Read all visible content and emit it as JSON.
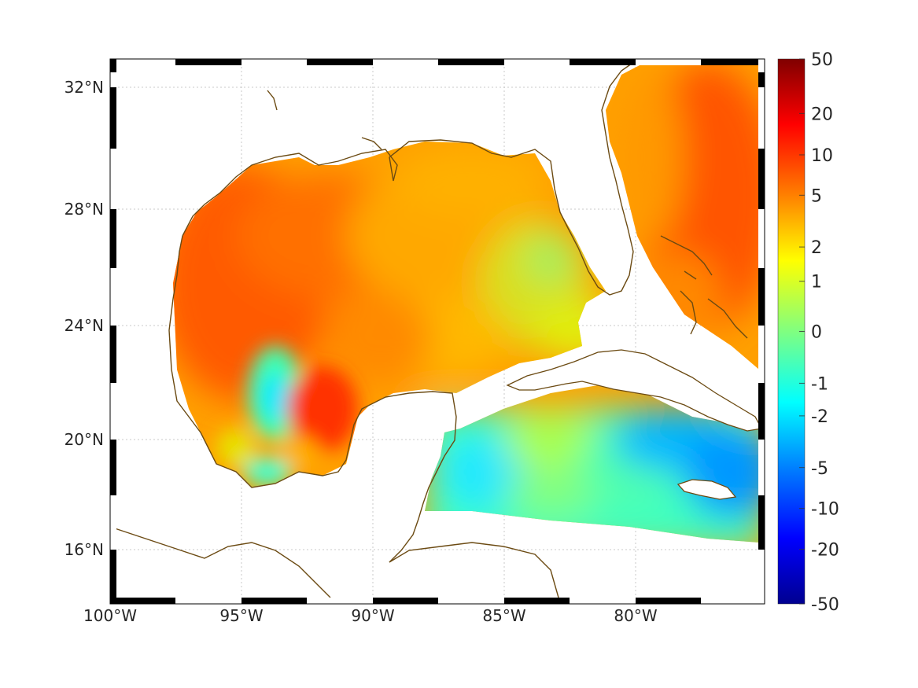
{
  "map": {
    "projection": "Mercator",
    "lon_range": [
      -100,
      -75
    ],
    "lat_range": [
      14.2,
      33
    ],
    "x_ticks": [
      "100°W",
      "95°W",
      "90°W",
      "85°W",
      "80°W"
    ],
    "y_ticks": [
      "32°N",
      "28°N",
      "24°N",
      "20°N",
      "16°N"
    ],
    "grid": true,
    "coastline_color": "#6b4a12",
    "frame_style": "alternating black-white border",
    "colormap": "jet",
    "scale": "symmetric log",
    "field_summary": [
      {
        "region": "Western Gulf of Mexico",
        "approx_value": 8
      },
      {
        "region": "Bay of Campeche core",
        "approx_value": 14
      },
      {
        "region": "Bay of Campeche west",
        "approx_value": -1
      },
      {
        "region": "Central Gulf",
        "approx_value": 4
      },
      {
        "region": "Eastern Gulf / Florida Straits",
        "approx_value": 1
      },
      {
        "region": "Atlantic off Florida",
        "approx_value": 7
      },
      {
        "region": "Caribbean / Cayman Sea",
        "approx_value": -2
      },
      {
        "region": "Windward Passage / south of Cuba",
        "approx_value": -6
      }
    ]
  },
  "colorbar": {
    "ticks": [
      "50",
      "20",
      "10",
      "5",
      "2",
      "1",
      "0",
      "-1",
      "-2",
      "-5",
      "-10",
      "-20",
      "-50"
    ],
    "colors": [
      "#800000",
      "#ff0000",
      "#ff8000",
      "#ffff00",
      "#80ff80",
      "#00ffff",
      "#0080ff",
      "#0000ff",
      "#000090"
    ]
  }
}
